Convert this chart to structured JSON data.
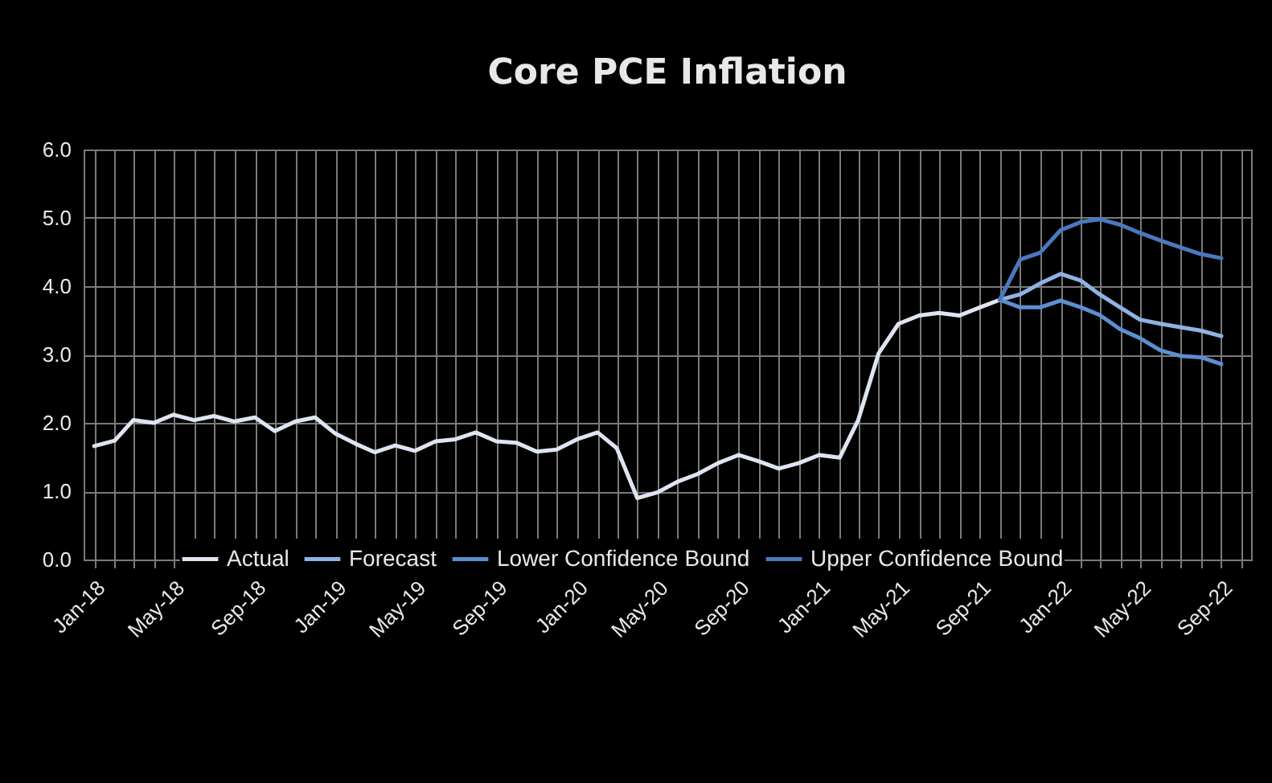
{
  "chart_data": {
    "type": "line",
    "title": "Core PCE Inflation",
    "x": [
      "2018-01",
      "2018-02",
      "2018-03",
      "2018-04",
      "2018-05",
      "2018-06",
      "2018-07",
      "2018-08",
      "2018-09",
      "2018-10",
      "2018-11",
      "2018-12",
      "2019-01",
      "2019-02",
      "2019-03",
      "2019-04",
      "2019-05",
      "2019-06",
      "2019-07",
      "2019-08",
      "2019-09",
      "2019-10",
      "2019-11",
      "2019-12",
      "2020-01",
      "2020-02",
      "2020-03",
      "2020-04",
      "2020-05",
      "2020-06",
      "2020-07",
      "2020-08",
      "2020-09",
      "2020-10",
      "2020-11",
      "2020-12",
      "2021-01",
      "2021-02",
      "2021-03",
      "2021-04",
      "2021-05",
      "2021-06",
      "2021-07",
      "2021-08",
      "2021-09",
      "2021-10",
      "2021-11",
      "2021-12",
      "2022-01",
      "2022-02",
      "2022-03",
      "2022-04",
      "2022-05",
      "2022-06",
      "2022-07",
      "2022-08",
      "2022-09"
    ],
    "series": [
      {
        "name": "Actual",
        "color": "#dfe4f2",
        "values": [
          1.66,
          1.74,
          2.04,
          2.0,
          2.12,
          2.04,
          2.1,
          2.02,
          2.08,
          1.88,
          2.02,
          2.08,
          1.84,
          1.69,
          1.57,
          1.67,
          1.59,
          1.73,
          1.76,
          1.86,
          1.73,
          1.71,
          1.58,
          1.61,
          1.76,
          1.86,
          1.63,
          0.9,
          0.98,
          1.14,
          1.25,
          1.41,
          1.53,
          1.44,
          1.33,
          1.41,
          1.53,
          1.49,
          2.04,
          3.02,
          3.45,
          3.57,
          3.61,
          3.57,
          3.69,
          3.8,
          null,
          null,
          null,
          null,
          null,
          null,
          null,
          null,
          null,
          null,
          null
        ]
      },
      {
        "name": "Forecast",
        "color": "#8fb2e3",
        "values": [
          null,
          null,
          null,
          null,
          null,
          null,
          null,
          null,
          null,
          null,
          null,
          null,
          null,
          null,
          null,
          null,
          null,
          null,
          null,
          null,
          null,
          null,
          null,
          null,
          null,
          null,
          null,
          null,
          null,
          null,
          null,
          null,
          null,
          null,
          null,
          null,
          null,
          null,
          null,
          null,
          null,
          null,
          null,
          null,
          null,
          3.8,
          3.88,
          4.04,
          4.18,
          4.08,
          3.88,
          3.69,
          3.51,
          3.45,
          3.4,
          3.35,
          3.27
        ]
      },
      {
        "name": "Lower Confidence Bound",
        "color": "#5b8fd0",
        "values": [
          null,
          null,
          null,
          null,
          null,
          null,
          null,
          null,
          null,
          null,
          null,
          null,
          null,
          null,
          null,
          null,
          null,
          null,
          null,
          null,
          null,
          null,
          null,
          null,
          null,
          null,
          null,
          null,
          null,
          null,
          null,
          null,
          null,
          null,
          null,
          null,
          null,
          null,
          null,
          null,
          null,
          null,
          null,
          null,
          null,
          3.8,
          3.69,
          3.69,
          3.79,
          3.69,
          3.58,
          3.37,
          3.24,
          3.06,
          2.98,
          2.96,
          2.86
        ]
      },
      {
        "name": "Upper Confidence Bound",
        "color": "#4a78bd",
        "values": [
          null,
          null,
          null,
          null,
          null,
          null,
          null,
          null,
          null,
          null,
          null,
          null,
          null,
          null,
          null,
          null,
          null,
          null,
          null,
          null,
          null,
          null,
          null,
          null,
          null,
          null,
          null,
          null,
          null,
          null,
          null,
          null,
          null,
          null,
          null,
          null,
          null,
          null,
          null,
          null,
          null,
          null,
          null,
          null,
          null,
          3.8,
          4.39,
          4.49,
          4.82,
          4.94,
          4.98,
          4.9,
          4.78,
          4.67,
          4.57,
          4.47,
          4.41
        ]
      }
    ],
    "xlim": [
      "2017-12-16",
      "2022-10-16"
    ],
    "xticks": [
      {
        "value": "2018-01",
        "label": "Jan-18"
      },
      {
        "value": "2018-02",
        "label": null
      },
      {
        "value": "2018-03",
        "label": null
      },
      {
        "value": "2018-04",
        "label": null
      },
      {
        "value": "2018-05",
        "label": "May-18"
      },
      {
        "value": "2018-06",
        "label": null
      },
      {
        "value": "2018-07",
        "label": null
      },
      {
        "value": "2018-08",
        "label": null
      },
      {
        "value": "2018-09",
        "label": "Sep-18"
      },
      {
        "value": "2018-10",
        "label": null
      },
      {
        "value": "2018-11",
        "label": null
      },
      {
        "value": "2018-12",
        "label": null
      },
      {
        "value": "2019-01",
        "label": "Jan-19"
      },
      {
        "value": "2019-02",
        "label": null
      },
      {
        "value": "2019-03",
        "label": null
      },
      {
        "value": "2019-04",
        "label": null
      },
      {
        "value": "2019-05",
        "label": "May-19"
      },
      {
        "value": "2019-06",
        "label": null
      },
      {
        "value": "2019-07",
        "label": null
      },
      {
        "value": "2019-08",
        "label": null
      },
      {
        "value": "2019-09",
        "label": "Sep-19"
      },
      {
        "value": "2019-10",
        "label": null
      },
      {
        "value": "2019-11",
        "label": null
      },
      {
        "value": "2019-12",
        "label": null
      },
      {
        "value": "2020-01",
        "label": "Jan-20"
      },
      {
        "value": "2020-02",
        "label": null
      },
      {
        "value": "2020-03",
        "label": null
      },
      {
        "value": "2020-04",
        "label": null
      },
      {
        "value": "2020-05",
        "label": "May-20"
      },
      {
        "value": "2020-06",
        "label": null
      },
      {
        "value": "2020-07",
        "label": null
      },
      {
        "value": "2020-08",
        "label": null
      },
      {
        "value": "2020-09",
        "label": "Sep-20"
      },
      {
        "value": "2020-10",
        "label": null
      },
      {
        "value": "2020-11",
        "label": null
      },
      {
        "value": "2020-12",
        "label": null
      },
      {
        "value": "2021-01",
        "label": "Jan-21"
      },
      {
        "value": "2021-02",
        "label": null
      },
      {
        "value": "2021-03",
        "label": null
      },
      {
        "value": "2021-04",
        "label": null
      },
      {
        "value": "2021-05",
        "label": "May-21"
      },
      {
        "value": "2021-06",
        "label": null
      },
      {
        "value": "2021-07",
        "label": null
      },
      {
        "value": "2021-08",
        "label": null
      },
      {
        "value": "2021-09",
        "label": "Sep-21"
      },
      {
        "value": "2021-10",
        "label": null
      },
      {
        "value": "2021-11",
        "label": null
      },
      {
        "value": "2021-12",
        "label": null
      },
      {
        "value": "2022-01",
        "label": "Jan-22"
      },
      {
        "value": "2022-02",
        "label": null
      },
      {
        "value": "2022-03",
        "label": null
      },
      {
        "value": "2022-04",
        "label": null
      },
      {
        "value": "2022-05",
        "label": "May-22"
      },
      {
        "value": "2022-06",
        "label": null
      },
      {
        "value": "2022-07",
        "label": null
      },
      {
        "value": "2022-08",
        "label": null
      },
      {
        "value": "2022-09",
        "label": "Sep-22"
      },
      {
        "value": "2022-10",
        "label": null
      }
    ],
    "ylim": [
      0,
      6
    ],
    "yticks": [
      {
        "value": 0,
        "label": "0.0"
      },
      {
        "value": 1,
        "label": "1.0"
      },
      {
        "value": 2,
        "label": "2.0"
      },
      {
        "value": 3,
        "label": "3.0"
      },
      {
        "value": 4,
        "label": "4.0"
      },
      {
        "value": 5,
        "label": "5.0"
      },
      {
        "value": 6,
        "label": "6.0"
      }
    ],
    "grid": true,
    "legend": "bottom",
    "marker": "none",
    "line_style": "solid"
  }
}
